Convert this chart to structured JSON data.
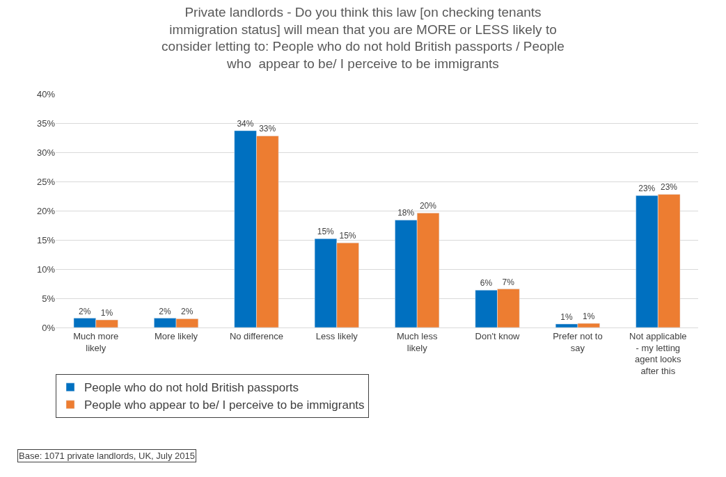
{
  "chart_data": {
    "type": "bar",
    "title": "Private landlords - Do you think this law [on checking tenants immigration status] will mean that you are MORE or LESS likely to consider letting to: People who do not hold British passports / People who  appear to be/ I perceive to be immigrants",
    "categories": [
      "Much more likely",
      "More likely",
      "No difference",
      "Less likely",
      "Much less likely",
      "Don't know",
      "Prefer not to say",
      "Not applicable - my letting agent looks after this"
    ],
    "series": [
      {
        "name": "People who do not hold British passports",
        "color": "#0070c0",
        "values": [
          1.6,
          1.6,
          33.7,
          15.2,
          18.4,
          6.4,
          0.6,
          22.6
        ],
        "value_labels": [
          "2%",
          "2%",
          "34%",
          "15%",
          "18%",
          "6%",
          "1%",
          "23%"
        ]
      },
      {
        "name": "People who appear to be/ I perceive to be immigrants",
        "color": "#ed7d31",
        "values": [
          1.3,
          1.5,
          32.8,
          14.5,
          19.6,
          6.6,
          0.7,
          22.8
        ],
        "value_labels": [
          "1%",
          "2%",
          "33%",
          "15%",
          "20%",
          "7%",
          "1%",
          "23%"
        ]
      }
    ],
    "ylim": [
      0,
      40
    ],
    "yticks": [
      {
        "value": 0,
        "label": "0%"
      },
      {
        "value": 5,
        "label": "5%"
      },
      {
        "value": 10,
        "label": "10%"
      },
      {
        "value": 15,
        "label": "15%"
      },
      {
        "value": 20,
        "label": "20%"
      },
      {
        "value": 25,
        "label": "25%"
      },
      {
        "value": 30,
        "label": "30%"
      },
      {
        "value": 35,
        "label": "35%"
      },
      {
        "value": 40,
        "label": "40%"
      }
    ],
    "grid": "y",
    "legend": "bottom left",
    "annotations": [
      "Base: 1071 private landlords, UK, July 2015"
    ]
  }
}
